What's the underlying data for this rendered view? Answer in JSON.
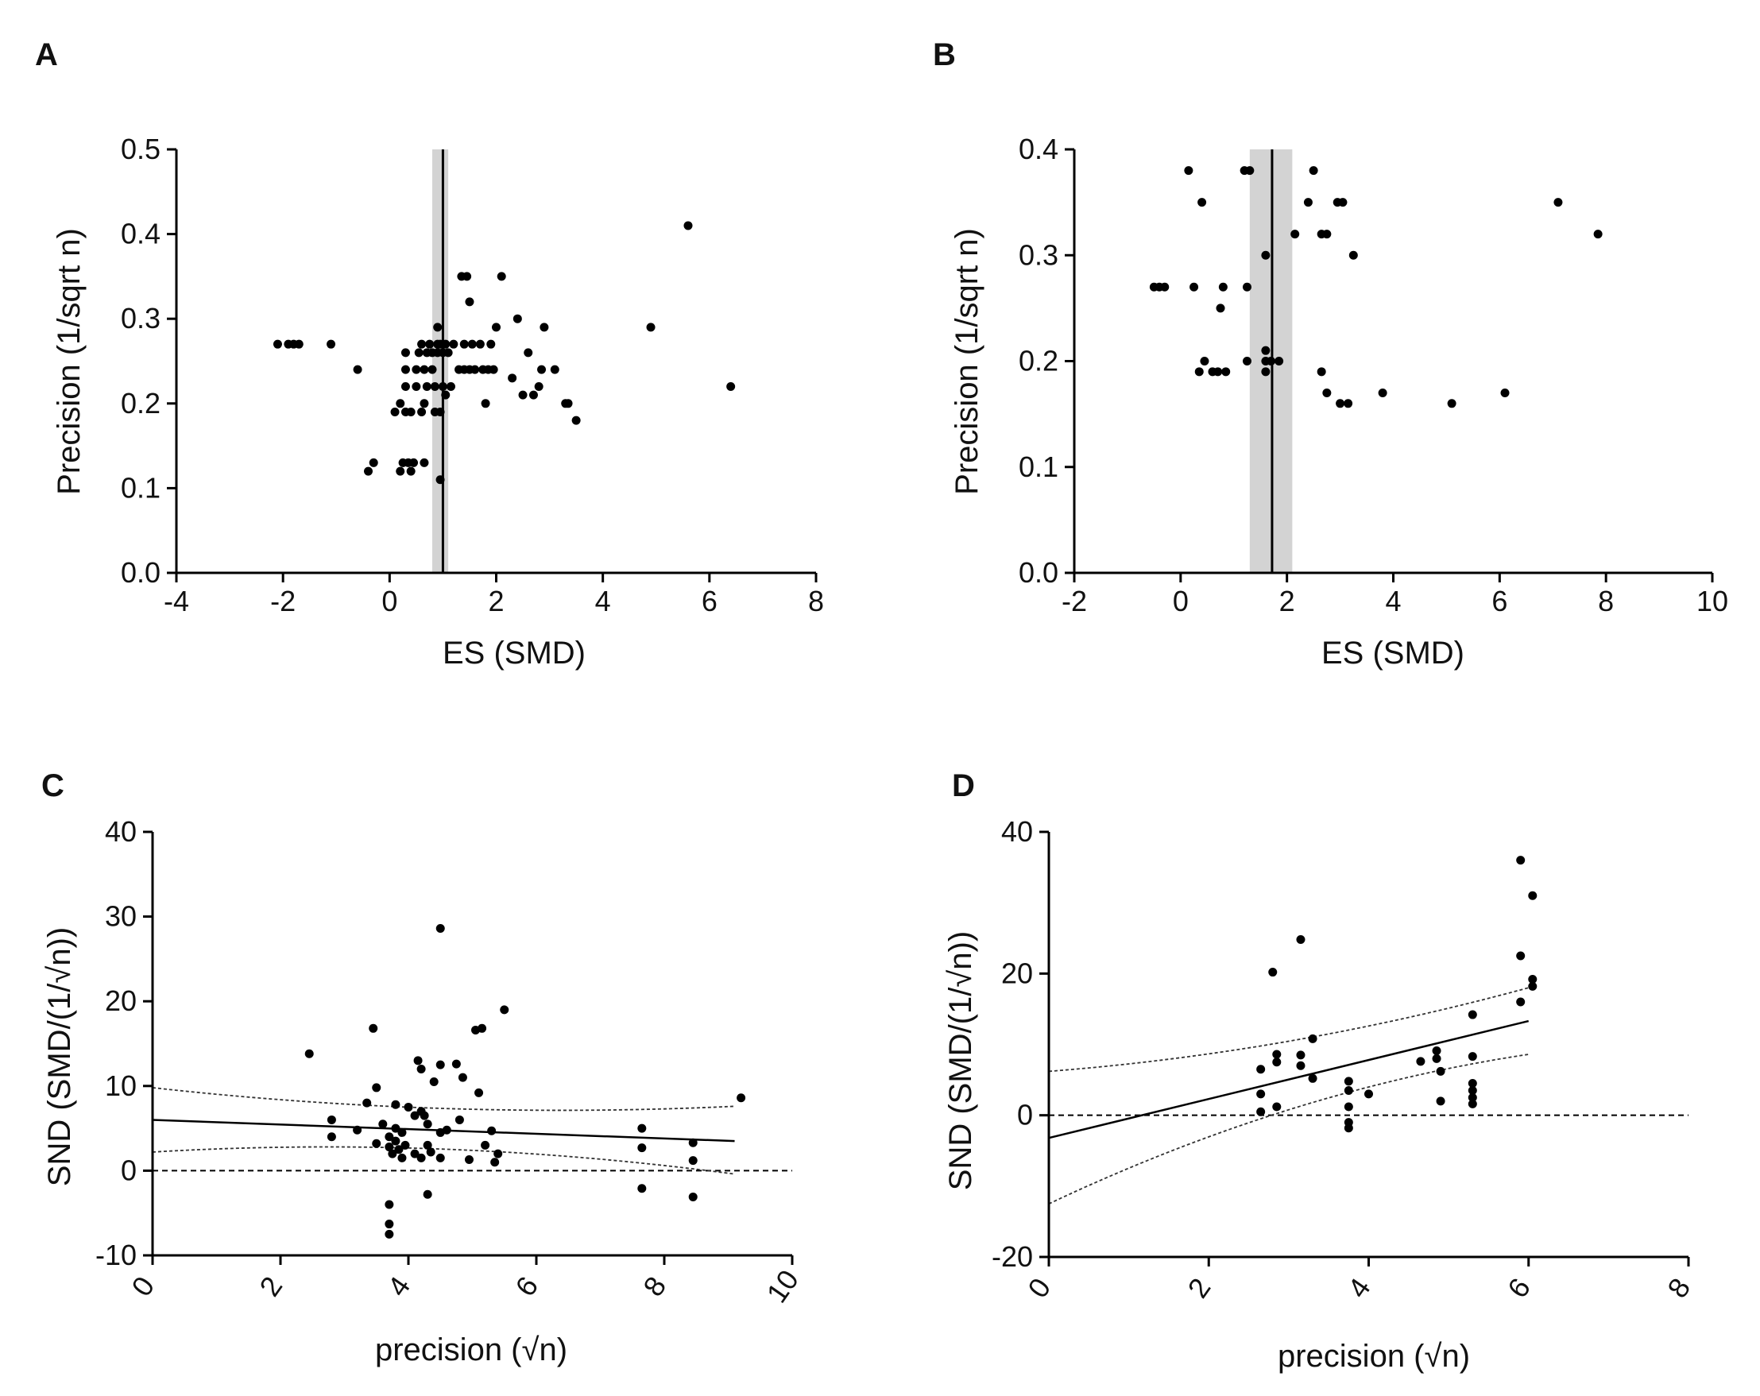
{
  "chart_data": [
    {
      "panel": "A",
      "type": "scatter",
      "xlabel": "ES (SMD)",
      "ylabel": "Precision (1/sqrt n)",
      "xlim": [
        -4,
        8
      ],
      "ylim": [
        0.0,
        0.5
      ],
      "xticks": [
        -4,
        -2,
        0,
        2,
        4,
        6,
        8
      ],
      "yticks": [
        0.0,
        0.1,
        0.2,
        0.3,
        0.4,
        0.5
      ],
      "xtick_labels": [
        "-4",
        "-2",
        "0",
        "2",
        "4",
        "6",
        "8"
      ],
      "ytick_labels": [
        "0.0",
        "0.1",
        "0.2",
        "0.3",
        "0.4",
        "0.5"
      ],
      "pooled_estimate": 1.0,
      "pooled_ci": [
        0.8,
        1.1
      ],
      "points": [
        [
          -2.1,
          0.27
        ],
        [
          -1.9,
          0.27
        ],
        [
          -1.8,
          0.27
        ],
        [
          -1.7,
          0.27
        ],
        [
          -1.1,
          0.27
        ],
        [
          -0.6,
          0.24
        ],
        [
          -0.4,
          0.12
        ],
        [
          -0.3,
          0.13
        ],
        [
          0.1,
          0.19
        ],
        [
          0.2,
          0.2
        ],
        [
          0.2,
          0.12
        ],
        [
          0.25,
          0.13
        ],
        [
          0.3,
          0.26
        ],
        [
          0.3,
          0.24
        ],
        [
          0.3,
          0.22
        ],
        [
          0.3,
          0.19
        ],
        [
          0.35,
          0.13
        ],
        [
          0.4,
          0.12
        ],
        [
          0.4,
          0.19
        ],
        [
          0.45,
          0.13
        ],
        [
          0.5,
          0.24
        ],
        [
          0.5,
          0.22
        ],
        [
          0.55,
          0.26
        ],
        [
          0.6,
          0.27
        ],
        [
          0.6,
          0.19
        ],
        [
          0.65,
          0.24
        ],
        [
          0.65,
          0.2
        ],
        [
          0.65,
          0.13
        ],
        [
          0.7,
          0.26
        ],
        [
          0.7,
          0.22
        ],
        [
          0.75,
          0.27
        ],
        [
          0.8,
          0.26
        ],
        [
          0.8,
          0.24
        ],
        [
          0.85,
          0.19
        ],
        [
          0.85,
          0.22
        ],
        [
          0.9,
          0.29
        ],
        [
          0.9,
          0.27
        ],
        [
          0.9,
          0.26
        ],
        [
          0.95,
          0.27
        ],
        [
          0.95,
          0.19
        ],
        [
          0.95,
          0.11
        ],
        [
          1.0,
          0.27
        ],
        [
          1.0,
          0.26
        ],
        [
          1.0,
          0.22
        ],
        [
          1.05,
          0.27
        ],
        [
          1.05,
          0.21
        ],
        [
          1.1,
          0.26
        ],
        [
          1.15,
          0.22
        ],
        [
          1.2,
          0.27
        ],
        [
          1.3,
          0.24
        ],
        [
          1.35,
          0.35
        ],
        [
          1.4,
          0.27
        ],
        [
          1.4,
          0.24
        ],
        [
          1.45,
          0.35
        ],
        [
          1.5,
          0.32
        ],
        [
          1.5,
          0.24
        ],
        [
          1.55,
          0.27
        ],
        [
          1.6,
          0.24
        ],
        [
          1.7,
          0.27
        ],
        [
          1.75,
          0.24
        ],
        [
          1.8,
          0.2
        ],
        [
          1.85,
          0.24
        ],
        [
          1.9,
          0.27
        ],
        [
          1.95,
          0.24
        ],
        [
          2.0,
          0.29
        ],
        [
          2.1,
          0.35
        ],
        [
          2.3,
          0.23
        ],
        [
          2.4,
          0.3
        ],
        [
          2.5,
          0.21
        ],
        [
          2.6,
          0.26
        ],
        [
          2.7,
          0.21
        ],
        [
          2.8,
          0.22
        ],
        [
          2.85,
          0.24
        ],
        [
          2.9,
          0.29
        ],
        [
          3.1,
          0.24
        ],
        [
          3.3,
          0.2
        ],
        [
          3.35,
          0.2
        ],
        [
          3.5,
          0.18
        ],
        [
          4.9,
          0.29
        ],
        [
          5.6,
          0.41
        ],
        [
          6.4,
          0.22
        ]
      ]
    },
    {
      "panel": "B",
      "type": "scatter",
      "xlabel": "ES (SMD)",
      "ylabel": "Precision (1/sqrt n)",
      "xlim": [
        -2,
        10
      ],
      "ylim": [
        0.0,
        0.4
      ],
      "xticks": [
        -2,
        0,
        2,
        4,
        6,
        8,
        10
      ],
      "yticks": [
        0.0,
        0.1,
        0.2,
        0.3,
        0.4
      ],
      "xtick_labels": [
        "-2",
        "0",
        "2",
        "4",
        "6",
        "8",
        "10"
      ],
      "ytick_labels": [
        "0.0",
        "0.1",
        "0.2",
        "0.3",
        "0.4"
      ],
      "pooled_estimate": 1.72,
      "pooled_ci": [
        1.3,
        2.1
      ],
      "points": [
        [
          -0.5,
          0.27
        ],
        [
          -0.4,
          0.27
        ],
        [
          -0.3,
          0.27
        ],
        [
          0.15,
          0.38
        ],
        [
          0.25,
          0.27
        ],
        [
          0.35,
          0.19
        ],
        [
          0.4,
          0.35
        ],
        [
          0.45,
          0.2
        ],
        [
          0.6,
          0.19
        ],
        [
          0.7,
          0.19
        ],
        [
          0.75,
          0.25
        ],
        [
          0.8,
          0.27
        ],
        [
          0.85,
          0.19
        ],
        [
          1.2,
          0.38
        ],
        [
          1.3,
          0.38
        ],
        [
          1.25,
          0.27
        ],
        [
          1.25,
          0.2
        ],
        [
          1.6,
          0.3
        ],
        [
          1.6,
          0.21
        ],
        [
          1.6,
          0.2
        ],
        [
          1.6,
          0.19
        ],
        [
          1.7,
          0.2
        ],
        [
          1.85,
          0.2
        ],
        [
          2.15,
          0.32
        ],
        [
          2.4,
          0.35
        ],
        [
          2.5,
          0.38
        ],
        [
          2.65,
          0.32
        ],
        [
          2.65,
          0.19
        ],
        [
          2.75,
          0.32
        ],
        [
          2.75,
          0.17
        ],
        [
          2.95,
          0.35
        ],
        [
          3.0,
          0.16
        ],
        [
          3.05,
          0.35
        ],
        [
          3.15,
          0.16
        ],
        [
          3.25,
          0.3
        ],
        [
          3.8,
          0.17
        ],
        [
          5.1,
          0.16
        ],
        [
          6.1,
          0.17
        ],
        [
          7.1,
          0.35
        ],
        [
          7.85,
          0.32
        ]
      ]
    },
    {
      "panel": "C",
      "type": "scatter",
      "xlabel": "precision (√n)",
      "ylabel": "SND (SMD/(1/√n))",
      "xlim": [
        0,
        10
      ],
      "ylim": [
        -10,
        40
      ],
      "xticks": [
        0,
        2,
        4,
        6,
        8,
        10
      ],
      "yticks": [
        -10,
        0,
        10,
        20,
        30,
        40
      ],
      "xtick_labels": [
        "0",
        "2",
        "4",
        "6",
        "8",
        "10"
      ],
      "ytick_labels": [
        "-10",
        "0",
        "10",
        "20",
        "30",
        "40"
      ],
      "regression": {
        "x": [
          0,
          9.1
        ],
        "y": [
          6.0,
          3.5
        ]
      },
      "ci_band": {
        "upper": [
          [
            0,
            9.8
          ],
          [
            4.5,
            6.0
          ],
          [
            9.1,
            7.6
          ]
        ],
        "lower": [
          [
            0,
            2.2
          ],
          [
            4.5,
            4.2
          ],
          [
            9.1,
            -0.4
          ]
        ]
      },
      "zero_line": 0,
      "points": [
        [
          2.45,
          13.8
        ],
        [
          2.8,
          6.0
        ],
        [
          2.8,
          4.0
        ],
        [
          3.2,
          4.8
        ],
        [
          3.35,
          8.0
        ],
        [
          3.45,
          16.8
        ],
        [
          3.5,
          9.8
        ],
        [
          3.5,
          3.2
        ],
        [
          3.6,
          5.5
        ],
        [
          3.7,
          4.0
        ],
        [
          3.7,
          2.8
        ],
        [
          3.7,
          -4.0
        ],
        [
          3.7,
          -6.3
        ],
        [
          3.7,
          -7.5
        ],
        [
          3.75,
          2.0
        ],
        [
          3.8,
          7.8
        ],
        [
          3.8,
          5.0
        ],
        [
          3.8,
          3.5
        ],
        [
          3.85,
          2.5
        ],
        [
          3.9,
          4.5
        ],
        [
          3.9,
          1.5
        ],
        [
          3.95,
          3.0
        ],
        [
          4.0,
          7.5
        ],
        [
          4.1,
          6.5
        ],
        [
          4.1,
          2.0
        ],
        [
          4.15,
          13.0
        ],
        [
          4.2,
          12.0
        ],
        [
          4.2,
          7.0
        ],
        [
          4.2,
          1.5
        ],
        [
          4.25,
          6.5
        ],
        [
          4.3,
          5.5
        ],
        [
          4.3,
          3.0
        ],
        [
          4.3,
          -2.8
        ],
        [
          4.35,
          2.2
        ],
        [
          4.4,
          10.5
        ],
        [
          4.5,
          28.6
        ],
        [
          4.5,
          12.5
        ],
        [
          4.5,
          4.5
        ],
        [
          4.5,
          1.5
        ],
        [
          4.6,
          4.8
        ],
        [
          4.75,
          12.6
        ],
        [
          4.8,
          6.0
        ],
        [
          4.85,
          11.0
        ],
        [
          4.95,
          1.3
        ],
        [
          5.05,
          16.6
        ],
        [
          5.15,
          16.8
        ],
        [
          5.1,
          9.2
        ],
        [
          5.2,
          3.0
        ],
        [
          5.3,
          4.7
        ],
        [
          5.35,
          1.0
        ],
        [
          5.4,
          2.0
        ],
        [
          5.5,
          19.0
        ],
        [
          7.65,
          5.0
        ],
        [
          7.65,
          2.7
        ],
        [
          7.65,
          -2.1
        ],
        [
          8.45,
          3.3
        ],
        [
          8.45,
          1.2
        ],
        [
          8.45,
          -3.1
        ],
        [
          9.2,
          8.6
        ]
      ]
    },
    {
      "panel": "D",
      "type": "scatter",
      "xlabel": "precision (√n)",
      "ylabel": "SND (SMD/(1/√n))",
      "xlim": [
        0,
        8
      ],
      "ylim": [
        -20,
        40
      ],
      "xticks": [
        0,
        2,
        4,
        6,
        8
      ],
      "yticks": [
        -20,
        0,
        20,
        40
      ],
      "xtick_labels": [
        "0",
        "2",
        "4",
        "6",
        "8"
      ],
      "ytick_labels": [
        "-20",
        "0",
        "20",
        "40"
      ],
      "regression": {
        "x": [
          0,
          6.0
        ],
        "y": [
          -3.2,
          13.3
        ]
      },
      "ci_band": {
        "upper": [
          [
            0,
            6.2
          ],
          [
            3.0,
            8.8
          ],
          [
            6.0,
            18.0
          ]
        ],
        "lower": [
          [
            0,
            -12.5
          ],
          [
            3.0,
            3.5
          ],
          [
            6.0,
            8.6
          ]
        ]
      },
      "zero_line": 0,
      "points": [
        [
          2.65,
          6.5
        ],
        [
          2.65,
          3.0
        ],
        [
          2.65,
          0.5
        ],
        [
          2.8,
          20.2
        ],
        [
          2.85,
          8.6
        ],
        [
          2.85,
          7.5
        ],
        [
          2.85,
          1.2
        ],
        [
          3.15,
          24.8
        ],
        [
          3.15,
          8.5
        ],
        [
          3.15,
          7.0
        ],
        [
          3.3,
          10.8
        ],
        [
          3.3,
          5.2
        ],
        [
          3.75,
          4.8
        ],
        [
          3.75,
          3.5
        ],
        [
          3.75,
          1.2
        ],
        [
          3.75,
          -1.0
        ],
        [
          3.75,
          -1.8
        ],
        [
          4.0,
          3.0
        ],
        [
          4.65,
          7.6
        ],
        [
          4.85,
          9.1
        ],
        [
          4.85,
          8.0
        ],
        [
          4.9,
          6.2
        ],
        [
          4.9,
          2.0
        ],
        [
          5.3,
          14.2
        ],
        [
          5.3,
          8.3
        ],
        [
          5.3,
          4.5
        ],
        [
          5.3,
          3.5
        ],
        [
          5.3,
          2.5
        ],
        [
          5.3,
          1.6
        ],
        [
          5.9,
          36.0
        ],
        [
          5.9,
          22.5
        ],
        [
          5.9,
          16.0
        ],
        [
          6.05,
          31.0
        ],
        [
          6.05,
          19.2
        ],
        [
          6.05,
          18.2
        ]
      ]
    }
  ]
}
